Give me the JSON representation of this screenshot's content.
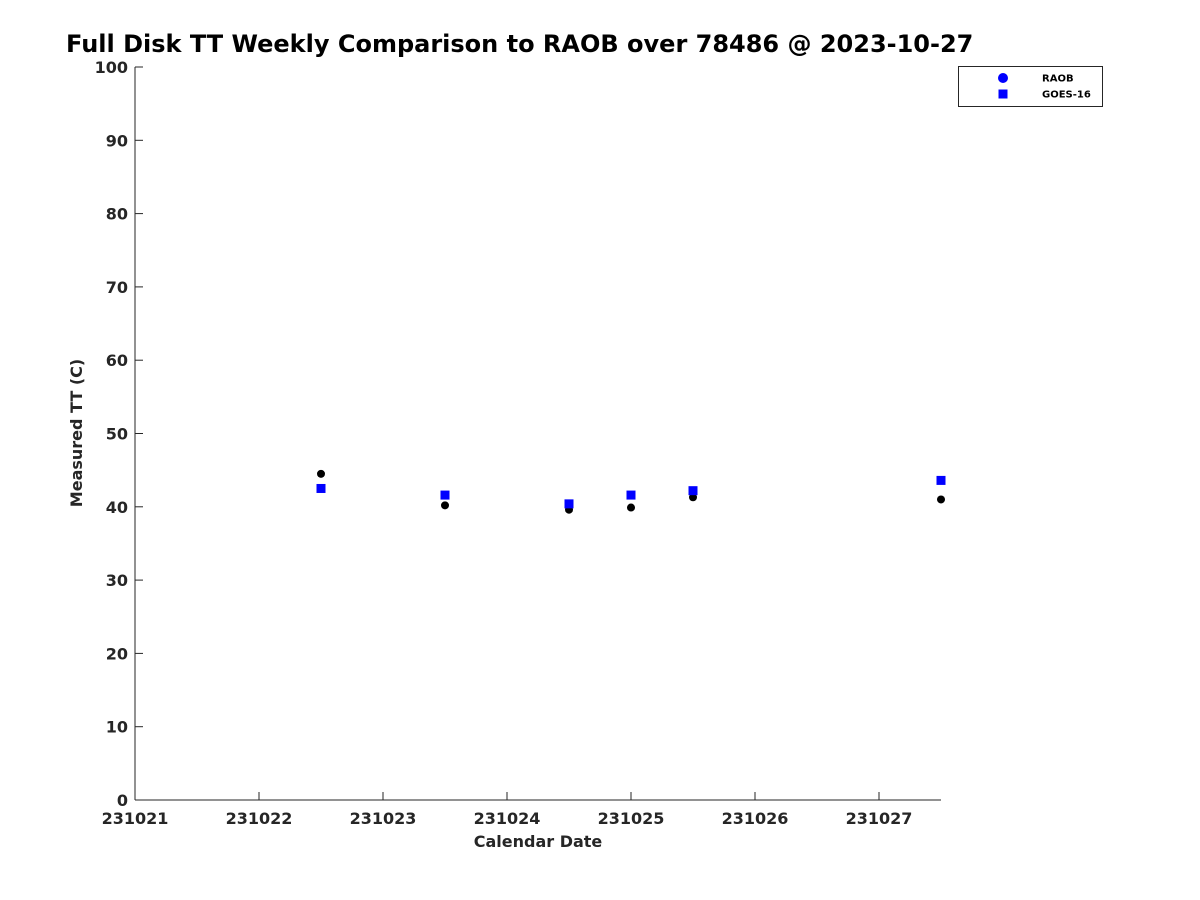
{
  "chart_data": {
    "type": "scatter",
    "title": "Full Disk TT Weekly Comparison to RAOB over 78486 @ 2023-10-27",
    "xlabel": "Calendar Date",
    "ylabel": "Measured TT (C)",
    "xlim": [
      "2023-10-21T00:00",
      "2023-10-27T12:00"
    ],
    "ylim": [
      0,
      100
    ],
    "x_ticks": [
      "231021",
      "231022",
      "231023",
      "231024",
      "231025",
      "231026",
      "231027"
    ],
    "y_ticks": [
      "0",
      "10",
      "20",
      "30",
      "40",
      "50",
      "60",
      "70",
      "80",
      "90",
      "100"
    ],
    "legend_position": "top-right",
    "series": [
      {
        "name": "RAOB",
        "marker": "circle",
        "color": "#000000",
        "legend_color": "#0000ff",
        "points": [
          {
            "x": "2023-10-22T12:00",
            "y": 44.5
          },
          {
            "x": "2023-10-23T12:00",
            "y": 40.2
          },
          {
            "x": "2023-10-24T12:00",
            "y": 39.6
          },
          {
            "x": "2023-10-25T00:00",
            "y": 39.9
          },
          {
            "x": "2023-10-25T12:00",
            "y": 41.3
          },
          {
            "x": "2023-10-27T12:00",
            "y": 41.0
          }
        ]
      },
      {
        "name": "GOES-16",
        "marker": "square",
        "color": "#0000ff",
        "legend_color": "#0000ff",
        "points": [
          {
            "x": "2023-10-22T12:00",
            "y": 42.5
          },
          {
            "x": "2023-10-23T12:00",
            "y": 41.6
          },
          {
            "x": "2023-10-24T12:00",
            "y": 40.4
          },
          {
            "x": "2023-10-25T00:00",
            "y": 41.6
          },
          {
            "x": "2023-10-25T12:00",
            "y": 42.2
          },
          {
            "x": "2023-10-27T12:00",
            "y": 43.6
          }
        ]
      }
    ]
  }
}
